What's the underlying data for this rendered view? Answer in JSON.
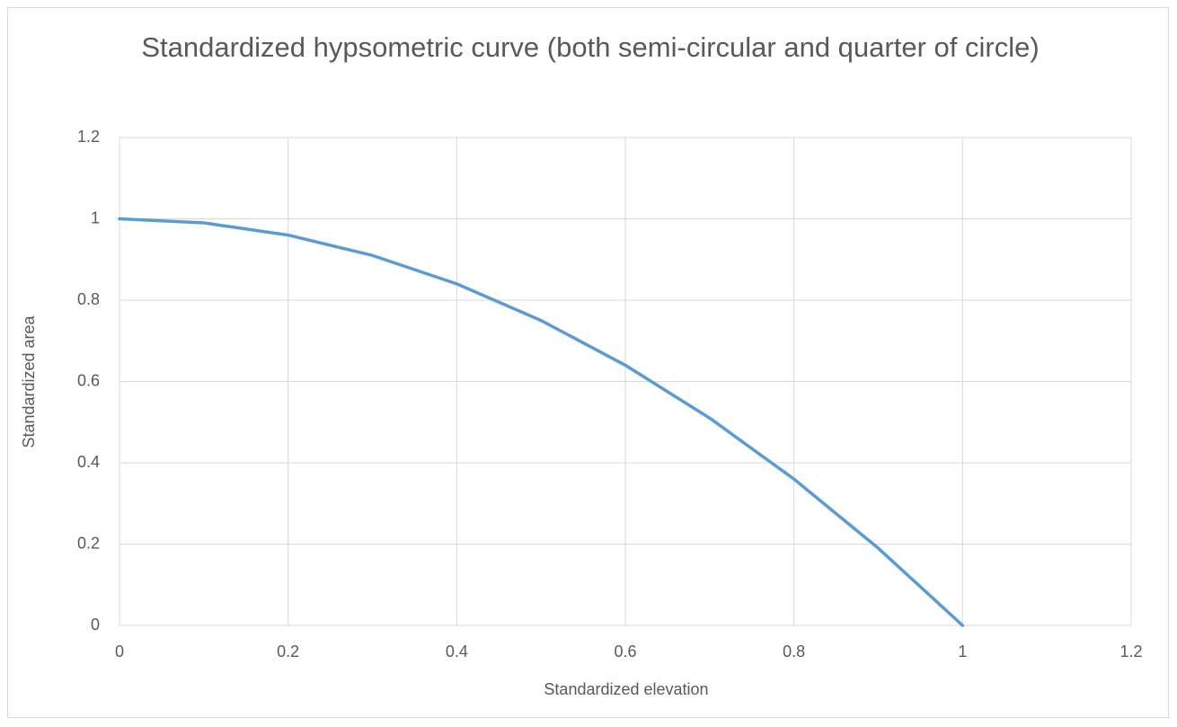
{
  "chart_data": {
    "type": "line",
    "title": "Standardized hypsometric curve (both semi-circular and quarter of circle)",
    "x_label": "Standardized elevation",
    "y_label": "Standardized area",
    "x": [
      0,
      0.1,
      0.2,
      0.3,
      0.4,
      0.5,
      0.6,
      0.7,
      0.8,
      0.9,
      1
    ],
    "series": [
      {
        "name": "Standardized area",
        "color": "#5b9bd5",
        "values": [
          1,
          0.99,
          0.96,
          0.91,
          0.84,
          0.75,
          0.64,
          0.51,
          0.36,
          0.19,
          0
        ]
      }
    ],
    "xlim": [
      0,
      1.2
    ],
    "xticks": [
      0,
      0.2,
      0.4,
      0.6,
      0.8,
      1,
      1.2
    ],
    "ylim": [
      0,
      1.2
    ],
    "yticks": [
      0,
      0.2,
      0.4,
      0.6,
      0.8,
      1,
      1.2
    ],
    "grid": true
  }
}
